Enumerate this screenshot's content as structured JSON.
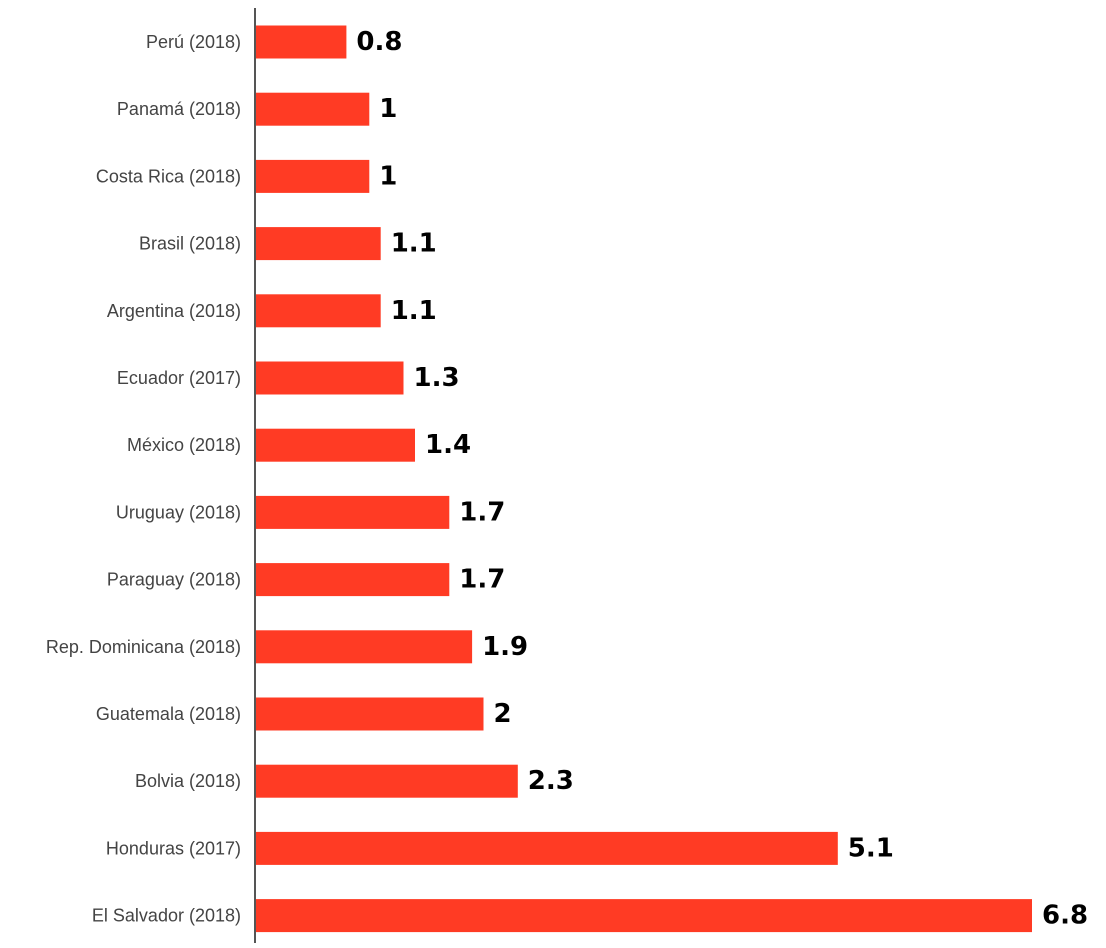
{
  "chart_data": {
    "type": "bar",
    "orientation": "horizontal",
    "categories": [
      "Perú (2018)",
      "Panamá (2018)",
      "Costa Rica (2018)",
      "Brasil (2018)",
      "Argentina (2018)",
      "Ecuador (2017)",
      "México (2018)",
      "Uruguay (2018)",
      "Paraguay (2018)",
      "Rep. Dominicana (2018)",
      "Guatemala (2018)",
      "Bolvia (2018)",
      "Honduras (2017)",
      "El Salvador (2018)"
    ],
    "values": [
      0.8,
      1,
      1,
      1.1,
      1.1,
      1.3,
      1.4,
      1.7,
      1.7,
      1.9,
      2,
      2.3,
      5.1,
      6.8
    ],
    "value_labels": [
      "0.8",
      "1",
      "1",
      "1.1",
      "1.1",
      "1.3",
      "1.4",
      "1.7",
      "1.7",
      "1.9",
      "2",
      "2.3",
      "5.1",
      "6.8"
    ],
    "title": "",
    "xlabel": "",
    "ylabel": "",
    "xlim": [
      0,
      6.8
    ],
    "grid": false,
    "legend": "none",
    "bar_color": "#ff3b24",
    "axis_color": "#555555"
  }
}
